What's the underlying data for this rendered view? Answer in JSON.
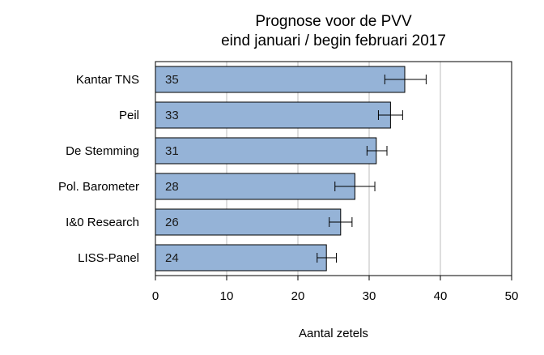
{
  "chart_data": {
    "type": "bar",
    "orientation": "horizontal",
    "title": "Prognose voor de PVV",
    "subtitle": "eind januari / begin februari 2017",
    "xlabel": "Aantal zetels",
    "ylabel": "",
    "xlim": [
      0,
      50
    ],
    "xticks": [
      "0",
      "10",
      "20",
      "30",
      "40",
      "50"
    ],
    "grid": "vertical",
    "bar_color": "#95b3d7",
    "categories": [
      "Kantar TNS",
      "Peil",
      "De Stemming",
      "Pol. Barometer",
      "I&0 Research",
      "LISS-Panel"
    ],
    "values": [
      35,
      33,
      31,
      28,
      26,
      24
    ],
    "value_labels": [
      "35",
      "33",
      "31",
      "28",
      "26",
      "24"
    ],
    "error_low": [
      32.2,
      31.3,
      29.7,
      25.2,
      24.4,
      22.7
    ],
    "error_high": [
      38.0,
      34.7,
      32.5,
      30.8,
      27.6,
      25.4
    ]
  }
}
